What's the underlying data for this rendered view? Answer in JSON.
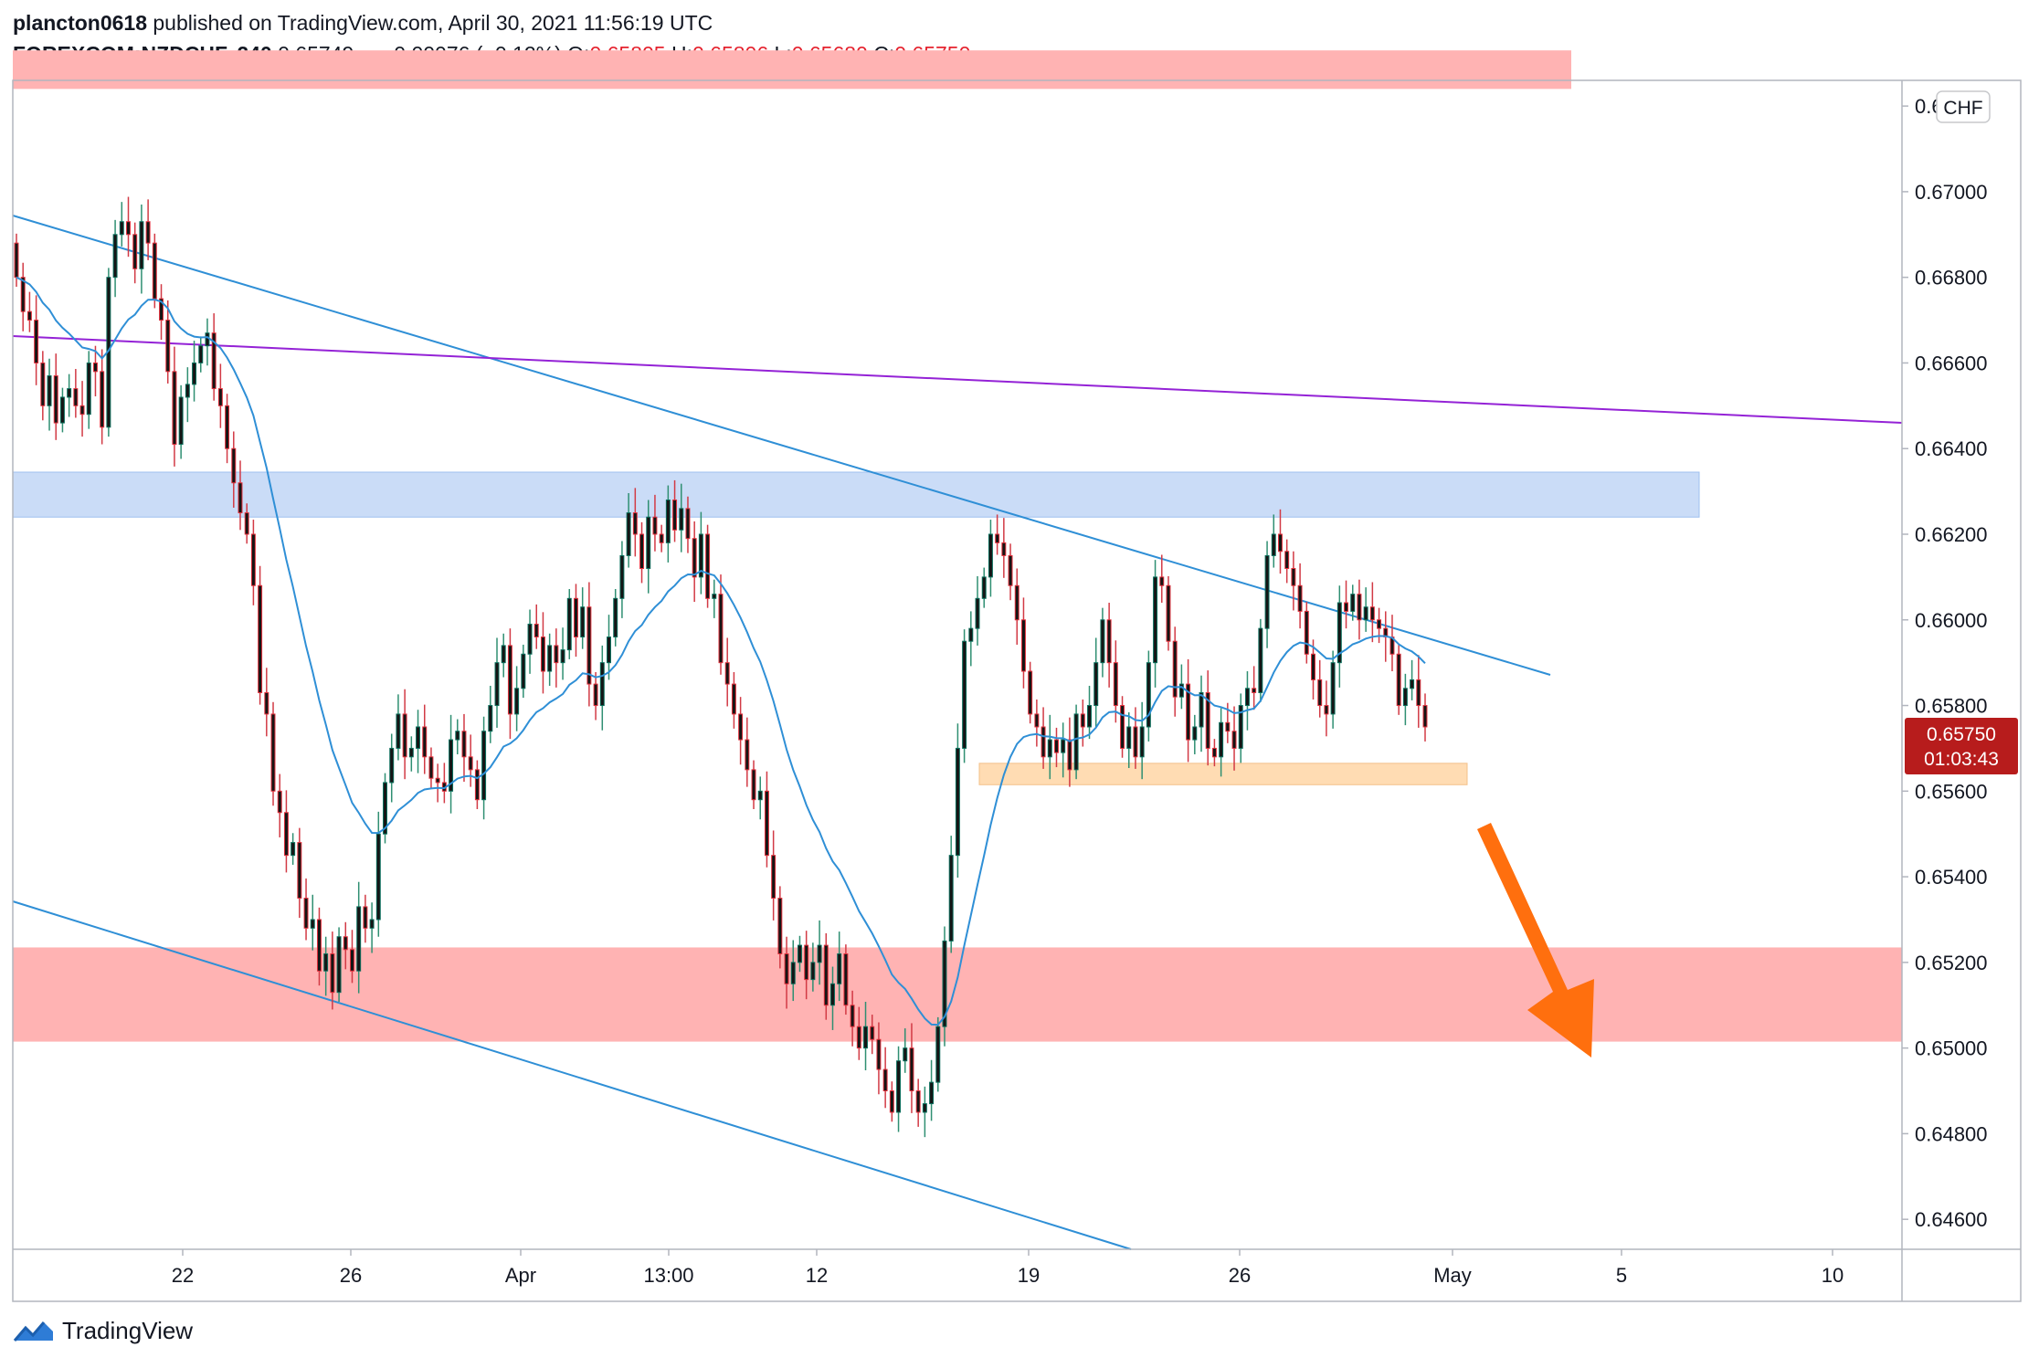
{
  "header": {
    "author": "plancton0618",
    "published": "published on TradingView.com, April 30, 2021 11:56:19 UTC",
    "symbol": "FOREXCOM:NZDCHF, 240",
    "last": "0.65749",
    "change": "−0.00076 (−0.12%)",
    "o_label": "O:",
    "o_value": "0.65805",
    "h_label": "H:",
    "h_value": "0.65806",
    "l_label": "L:",
    "l_value": "0.65680",
    "c_label": "C:",
    "c_value": "0.65750"
  },
  "currency_badge": "CHF",
  "price_tag": {
    "price": "0.65750",
    "countdown": "01:03:43"
  },
  "footer": {
    "brand": "TradingView"
  },
  "colors": {
    "up": "#0c6e5c",
    "down": "#e0303c",
    "wick_up": "#2f8f72",
    "wick_down": "#d23a45",
    "ma": "#2f8fd6",
    "channel": "#2f8fd6",
    "purple": "#9422d6",
    "resistance_zone": "#ffb3b3",
    "blue_zone": "#cadcf7",
    "support_zone": "#ffdcb3",
    "arrow": "#ff6f0e",
    "price_tag": "#b71c1c"
  },
  "chart_data": {
    "type": "candlestick",
    "timeframe": "240",
    "y_axis": {
      "ticks": [
        "0.67200",
        "0.67000",
        "0.66800",
        "0.66600",
        "0.66400",
        "0.66200",
        "0.66000",
        "0.65800",
        "0.65600",
        "0.65400",
        "0.65200",
        "0.65000",
        "0.64800",
        "0.64600"
      ],
      "range": [
        0.6451,
        0.6733
      ]
    },
    "x_axis": {
      "ticks": [
        "22",
        "26",
        "Apr",
        "13:00",
        "12",
        "19",
        "26",
        "May",
        "5",
        "10"
      ]
    },
    "zones": [
      {
        "name": "upper-resistance-zone",
        "from": 0.6724,
        "to": 0.6733
      },
      {
        "name": "blue-resistance-zone",
        "from": 0.6624,
        "to": 0.66345
      },
      {
        "name": "lower-support-zone",
        "from": 0.65015,
        "to": 0.65235
      },
      {
        "name": "local-support-zone",
        "from": 0.65615,
        "to": 0.65665
      }
    ],
    "candles_close": [
      0.668,
      0.6672,
      0.667,
      0.666,
      0.665,
      0.6657,
      0.6646,
      0.6652,
      0.6654,
      0.665,
      0.6648,
      0.666,
      0.6658,
      0.6645,
      0.668,
      0.669,
      0.6693,
      0.669,
      0.6682,
      0.6693,
      0.6688,
      0.6675,
      0.667,
      0.6658,
      0.6641,
      0.6652,
      0.6655,
      0.666,
      0.6664,
      0.6667,
      0.6654,
      0.665,
      0.664,
      0.6632,
      0.6625,
      0.662,
      0.6608,
      0.6583,
      0.6578,
      0.656,
      0.6555,
      0.6545,
      0.6548,
      0.6535,
      0.6528,
      0.653,
      0.6518,
      0.6522,
      0.6513,
      0.6526,
      0.6523,
      0.6518,
      0.6533,
      0.6528,
      0.653,
      0.655,
      0.6562,
      0.657,
      0.6578,
      0.6568,
      0.657,
      0.6575,
      0.6568,
      0.6563,
      0.6562,
      0.656,
      0.6572,
      0.6574,
      0.6568,
      0.6565,
      0.6558,
      0.6574,
      0.658,
      0.659,
      0.6594,
      0.6578,
      0.6584,
      0.6592,
      0.6599,
      0.6596,
      0.6588,
      0.6594,
      0.659,
      0.6593,
      0.6605,
      0.6596,
      0.6603,
      0.6585,
      0.658,
      0.659,
      0.6596,
      0.6605,
      0.6615,
      0.6625,
      0.662,
      0.6612,
      0.6624,
      0.662,
      0.6618,
      0.6628,
      0.6621,
      0.6626,
      0.6619,
      0.661,
      0.662,
      0.6605,
      0.6606,
      0.659,
      0.6585,
      0.6578,
      0.6572,
      0.6565,
      0.6558,
      0.656,
      0.6545,
      0.6535,
      0.6522,
      0.6515,
      0.652,
      0.6524,
      0.6516,
      0.652,
      0.6524,
      0.651,
      0.6515,
      0.6522,
      0.651,
      0.6505,
      0.65,
      0.6505,
      0.6502,
      0.6495,
      0.649,
      0.6485,
      0.6497,
      0.65,
      0.649,
      0.6485,
      0.6487,
      0.6492,
      0.6505,
      0.6525,
      0.6545,
      0.657,
      0.6595,
      0.6598,
      0.6605,
      0.661,
      0.662,
      0.6618,
      0.6615,
      0.6608,
      0.66,
      0.6588,
      0.6578,
      0.6575,
      0.6568,
      0.6572,
      0.6569,
      0.6572,
      0.6565,
      0.6578,
      0.6575,
      0.658,
      0.659,
      0.66,
      0.659,
      0.658,
      0.657,
      0.6575,
      0.6568,
      0.6575,
      0.659,
      0.661,
      0.6608,
      0.6595,
      0.6582,
      0.6585,
      0.6572,
      0.6575,
      0.6583,
      0.657,
      0.6568,
      0.6576,
      0.6574,
      0.657,
      0.658,
      0.6584,
      0.6583,
      0.6598,
      0.6615,
      0.662,
      0.6616,
      0.6612,
      0.6608,
      0.6602,
      0.6592,
      0.6586,
      0.658,
      0.6578,
      0.659,
      0.6604,
      0.6602,
      0.6606,
      0.66,
      0.6603,
      0.66,
      0.6598,
      0.6596,
      0.6592,
      0.658,
      0.6584,
      0.6586,
      0.658,
      0.6575
    ]
  }
}
